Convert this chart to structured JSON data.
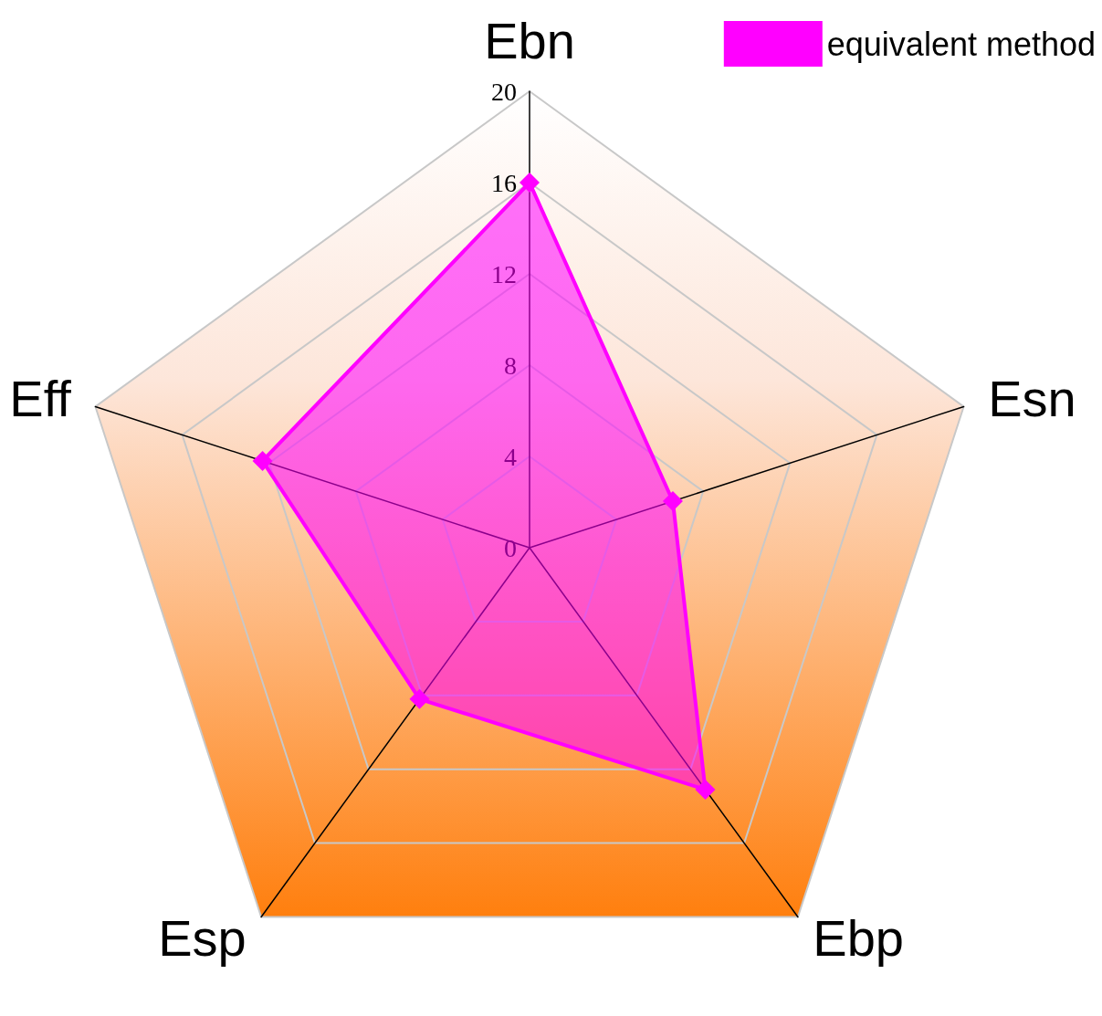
{
  "chart_data": {
    "type": "radar",
    "categories": [
      "Ebn",
      "Esn",
      "Ebp",
      "Esp",
      "Eff"
    ],
    "series": [
      {
        "name": "equivalent method",
        "color": "#ff00ff",
        "values": [
          16,
          6.6,
          13.1,
          8.2,
          12.3
        ]
      }
    ],
    "ylim": [
      0,
      20
    ],
    "yticks": [
      0,
      4,
      8,
      12,
      16,
      20
    ],
    "grid": true,
    "legend": "top right",
    "marker": "diamond",
    "line_style": "solid"
  }
}
